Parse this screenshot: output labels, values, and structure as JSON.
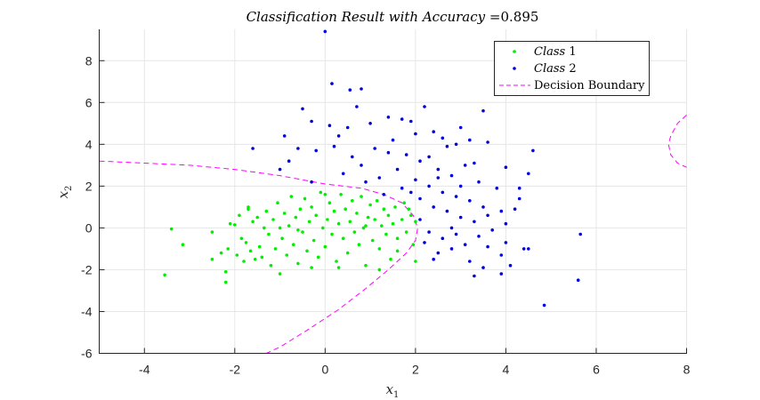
{
  "chart_data": {
    "type": "scatter",
    "title_prefix": "Classification Result with Accuracy =",
    "accuracy": "0.895",
    "xlabel_base": "x",
    "xlabel_sub": "1",
    "ylabel_base": "x",
    "ylabel_sub": "2",
    "xlim": [
      -5,
      8
    ],
    "ylim": [
      -6,
      9.5
    ],
    "xticks": [
      -4,
      -2,
      0,
      2,
      4,
      6,
      8
    ],
    "yticks": [
      -6,
      -4,
      -2,
      0,
      2,
      4,
      6,
      8
    ],
    "grid": true,
    "legend_position": "top-right",
    "legend": {
      "class1_word": "Class",
      "class1_num": "1",
      "class2_word": "Class",
      "class2_num": "2",
      "boundary_label": "Decision Boundary"
    },
    "colors": {
      "class1": "#00ee00",
      "class2": "#0000dd",
      "boundary": "#ff00ff"
    },
    "series": [
      {
        "name": "Class 1",
        "points": [
          [
            -3.55,
            -2.25
          ],
          [
            -3.4,
            -0.05
          ],
          [
            -3.15,
            -0.8
          ],
          [
            -2.5,
            -0.2
          ],
          [
            -2.5,
            -1.5
          ],
          [
            -2.2,
            -2.6
          ],
          [
            -2.2,
            -2.1
          ],
          [
            -2.15,
            -1.0
          ],
          [
            -2.1,
            0.2
          ],
          [
            -2.0,
            0.15
          ],
          [
            -1.95,
            -1.3
          ],
          [
            -1.9,
            0.6
          ],
          [
            -1.85,
            -0.5
          ],
          [
            -1.8,
            -1.6
          ],
          [
            -1.75,
            -0.7
          ],
          [
            -1.7,
            1.0
          ],
          [
            -1.65,
            -1.1
          ],
          [
            -1.6,
            0.3
          ],
          [
            -1.55,
            -1.5
          ],
          [
            -1.5,
            0.5
          ],
          [
            -1.45,
            -0.9
          ],
          [
            -1.4,
            -1.4
          ],
          [
            -1.35,
            0.0
          ],
          [
            -1.3,
            0.8
          ],
          [
            -1.25,
            -0.3
          ],
          [
            -1.2,
            -1.8
          ],
          [
            -1.15,
            0.4
          ],
          [
            -1.1,
            -1.0
          ],
          [
            -1.05,
            1.2
          ],
          [
            -1.0,
            -2.2
          ],
          [
            -0.95,
            -0.5
          ],
          [
            -0.9,
            0.7
          ],
          [
            -0.85,
            -1.3
          ],
          [
            -0.8,
            0.1
          ],
          [
            -0.75,
            1.5
          ],
          [
            -0.7,
            -0.8
          ],
          [
            -0.65,
            0.5
          ],
          [
            -0.6,
            -1.7
          ],
          [
            -0.55,
            0.9
          ],
          [
            -0.5,
            -0.2
          ],
          [
            -0.45,
            1.4
          ],
          [
            -0.4,
            -1.1
          ],
          [
            -0.35,
            0.3
          ],
          [
            -0.3,
            1.0
          ],
          [
            -0.25,
            -0.6
          ],
          [
            -0.2,
            0.6
          ],
          [
            -0.15,
            -1.4
          ],
          [
            -0.1,
            1.7
          ],
          [
            -0.05,
            0.0
          ],
          [
            0.0,
            -0.9
          ],
          [
            0.05,
            0.4
          ],
          [
            0.1,
            1.2
          ],
          [
            0.15,
            -0.3
          ],
          [
            0.2,
            0.8
          ],
          [
            0.25,
            -1.6
          ],
          [
            0.3,
            0.2
          ],
          [
            0.35,
            1.6
          ],
          [
            0.4,
            -0.5
          ],
          [
            0.45,
            0.9
          ],
          [
            0.5,
            -1.2
          ],
          [
            0.55,
            0.3
          ],
          [
            0.6,
            1.3
          ],
          [
            0.65,
            -0.2
          ],
          [
            0.7,
            0.7
          ],
          [
            0.75,
            -0.8
          ],
          [
            0.8,
            1.5
          ],
          [
            0.85,
            0.0
          ],
          [
            0.9,
            -1.8
          ],
          [
            0.95,
            0.5
          ],
          [
            1.0,
            1.1
          ],
          [
            1.05,
            -0.6
          ],
          [
            1.1,
            0.4
          ],
          [
            1.15,
            1.3
          ],
          [
            1.2,
            -1.0
          ],
          [
            1.25,
            0.1
          ],
          [
            1.3,
            0.9
          ],
          [
            1.35,
            -0.3
          ],
          [
            1.4,
            0.6
          ],
          [
            1.45,
            -1.5
          ],
          [
            1.5,
            0.2
          ],
          [
            1.55,
            1.0
          ],
          [
            1.6,
            -0.5
          ],
          [
            1.7,
            0.4
          ],
          [
            1.75,
            1.2
          ],
          [
            1.8,
            -0.2
          ],
          [
            1.9,
            0.6
          ],
          [
            1.95,
            -0.8
          ],
          [
            2.0,
            0.3
          ],
          [
            2.0,
            -1.6
          ],
          [
            1.85,
            0.9
          ],
          [
            -2.3,
            -1.2
          ],
          [
            -1.0,
            0.0
          ],
          [
            0.3,
            -1.9
          ],
          [
            -0.6,
            -0.1
          ],
          [
            0.9,
            0.1
          ],
          [
            1.6,
            -1.1
          ],
          [
            -1.7,
            0.9
          ],
          [
            0.0,
            1.6
          ],
          [
            -0.3,
            -1.9
          ],
          [
            1.2,
            -2.0
          ]
        ]
      },
      {
        "name": "Class 2",
        "points": [
          [
            0.0,
            9.4
          ],
          [
            0.15,
            6.9
          ],
          [
            0.55,
            6.6
          ],
          [
            0.8,
            6.65
          ],
          [
            -0.5,
            5.7
          ],
          [
            0.7,
            5.8
          ],
          [
            2.2,
            5.8
          ],
          [
            3.5,
            5.6
          ],
          [
            -1.6,
            3.8
          ],
          [
            -0.9,
            4.4
          ],
          [
            -0.3,
            5.1
          ],
          [
            0.1,
            4.9
          ],
          [
            0.5,
            4.8
          ],
          [
            1.0,
            5.0
          ],
          [
            1.4,
            5.3
          ],
          [
            1.9,
            5.1
          ],
          [
            2.4,
            4.6
          ],
          [
            2.6,
            4.3
          ],
          [
            2.9,
            4.0
          ],
          [
            3.2,
            4.2
          ],
          [
            3.6,
            4.1
          ],
          [
            4.6,
            3.7
          ],
          [
            -1.0,
            2.8
          ],
          [
            -0.6,
            3.8
          ],
          [
            -0.2,
            3.7
          ],
          [
            0.2,
            3.9
          ],
          [
            0.6,
            3.4
          ],
          [
            1.1,
            3.8
          ],
          [
            1.5,
            4.2
          ],
          [
            1.8,
            3.5
          ],
          [
            2.1,
            3.2
          ],
          [
            2.5,
            2.8
          ],
          [
            2.8,
            2.5
          ],
          [
            3.1,
            3.0
          ],
          [
            3.4,
            2.2
          ],
          [
            3.8,
            1.9
          ],
          [
            4.3,
            1.9
          ],
          [
            4.5,
            2.6
          ],
          [
            -0.3,
            2.2
          ],
          [
            0.4,
            2.6
          ],
          [
            0.8,
            3.0
          ],
          [
            1.2,
            2.4
          ],
          [
            1.6,
            2.8
          ],
          [
            2.0,
            2.3
          ],
          [
            2.3,
            2.0
          ],
          [
            2.6,
            1.7
          ],
          [
            2.9,
            1.5
          ],
          [
            3.2,
            1.3
          ],
          [
            3.5,
            1.0
          ],
          [
            3.9,
            0.8
          ],
          [
            4.3,
            1.4
          ],
          [
            1.3,
            1.6
          ],
          [
            1.7,
            1.9
          ],
          [
            2.1,
            1.4
          ],
          [
            2.4,
            1.0
          ],
          [
            2.7,
            0.8
          ],
          [
            3.0,
            0.5
          ],
          [
            3.3,
            0.3
          ],
          [
            3.6,
            0.6
          ],
          [
            4.0,
            0.2
          ],
          [
            2.1,
            0.4
          ],
          [
            2.3,
            -0.2
          ],
          [
            2.6,
            -0.5
          ],
          [
            2.9,
            -0.3
          ],
          [
            3.1,
            -0.8
          ],
          [
            3.4,
            -0.4
          ],
          [
            3.7,
            -0.1
          ],
          [
            4.0,
            -0.7
          ],
          [
            4.4,
            -1.0
          ],
          [
            2.2,
            -0.7
          ],
          [
            2.5,
            -1.2
          ],
          [
            2.8,
            -1.0
          ],
          [
            3.2,
            -1.6
          ],
          [
            3.5,
            -1.9
          ],
          [
            3.9,
            -1.3
          ],
          [
            4.1,
            -1.8
          ],
          [
            4.5,
            -1.0
          ],
          [
            2.4,
            -1.5
          ],
          [
            3.3,
            -2.3
          ],
          [
            3.9,
            -2.2
          ],
          [
            4.85,
            -3.7
          ],
          [
            5.6,
            -2.5
          ],
          [
            5.65,
            -0.3
          ],
          [
            2.7,
            3.9
          ],
          [
            3.0,
            2.0
          ],
          [
            1.4,
            3.6
          ],
          [
            0.9,
            2.2
          ],
          [
            2.0,
            4.5
          ],
          [
            3.3,
            3.1
          ],
          [
            4.2,
            0.9
          ],
          [
            1.9,
            1.7
          ],
          [
            2.8,
            0.0
          ],
          [
            3.6,
            -0.9
          ],
          [
            -0.8,
            3.2
          ],
          [
            0.3,
            4.4
          ],
          [
            1.7,
            5.2
          ],
          [
            2.3,
            3.4
          ],
          [
            3.0,
            4.8
          ],
          [
            4.0,
            2.9
          ],
          [
            2.5,
            2.4
          ]
        ]
      }
    ]
  }
}
